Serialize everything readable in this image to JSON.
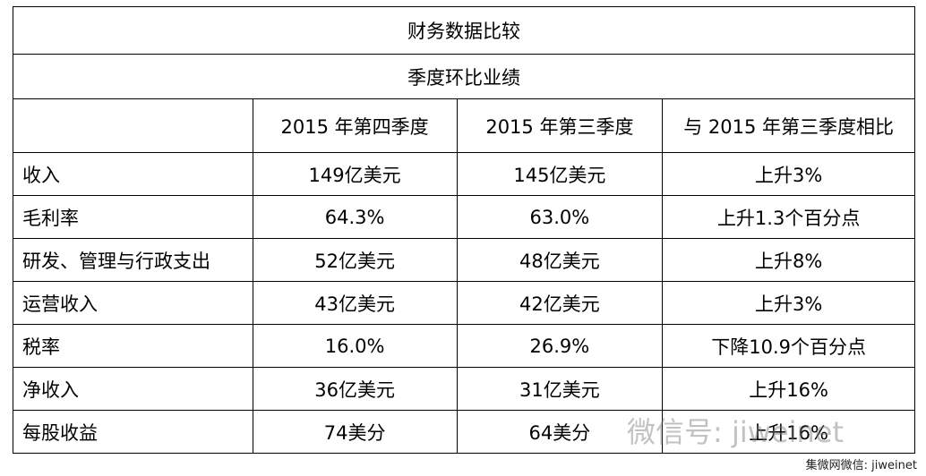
{
  "title": "财务数据比较",
  "subtitle": "季度环比业绩",
  "table": {
    "header": [
      "2015 年第四季度",
      "2015 年第三季度",
      "与 2015 年第三季度相比"
    ],
    "rows": [
      [
        "收入",
        "149亿美元",
        "145亿美元",
        "上升3%"
      ],
      [
        "毛利率",
        "64.3%",
        "63.0%",
        "上升1.3个百分点"
      ],
      [
        "研发、管理与行政支出",
        "52亿美元",
        "48亿美元",
        "上升8%"
      ],
      [
        "运营收入",
        "43亿美元",
        "42亿美元",
        "上升3%"
      ],
      [
        "税率",
        "16.0%",
        "26.9%",
        "下降10.9个百分点"
      ],
      [
        "净收入",
        "36亿美元",
        "31亿美元",
        "上升16%"
      ],
      [
        "每股收益",
        "74美分",
        "64美分",
        "上升16%"
      ]
    ]
  },
  "watermark": "微信号: jiweinet",
  "credit": "集微网微信: jiweinet"
}
